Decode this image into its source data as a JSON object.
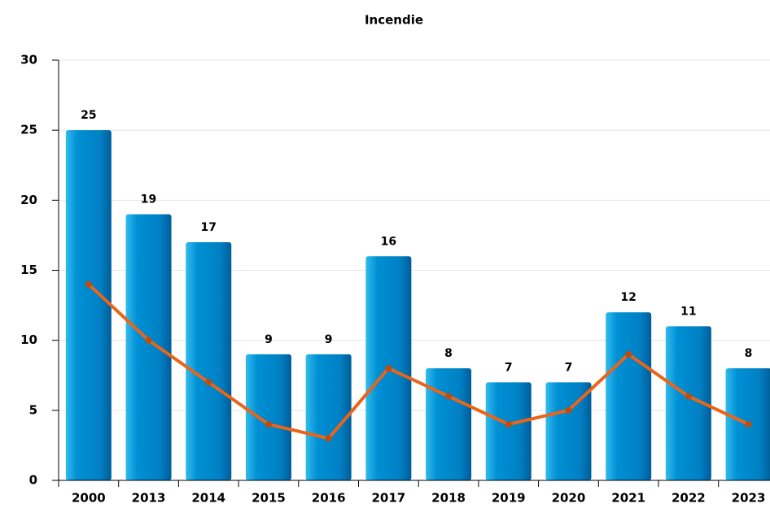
{
  "chart_data": {
    "type": "bar",
    "title": "Incendie",
    "categories": [
      "2000",
      "2013",
      "2014",
      "2015",
      "2016",
      "2017",
      "2018",
      "2019",
      "2020",
      "2021",
      "2022",
      "2023"
    ],
    "series": [
      {
        "type": "bar",
        "color": "#0088cc",
        "values": [
          25,
          19,
          17,
          9,
          9,
          16,
          8,
          7,
          7,
          12,
          11,
          8
        ]
      },
      {
        "type": "line",
        "color": "#e8651a",
        "values": [
          14,
          10,
          7,
          4,
          3,
          8,
          6,
          4,
          5,
          9,
          6,
          4
        ]
      }
    ],
    "ylim": [
      0,
      30
    ],
    "yticks": [
      0,
      5,
      10,
      15,
      20,
      25,
      30
    ],
    "grid": true
  }
}
